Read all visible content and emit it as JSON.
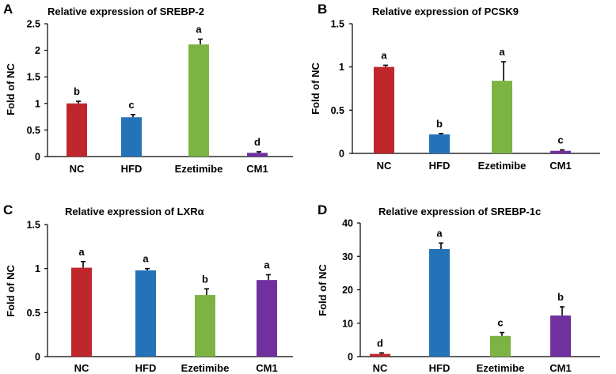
{
  "chart_data": [
    {
      "type": "bar",
      "panel": "A",
      "title": "Relative expression of SREBP-2",
      "ylabel": "Fold of NC",
      "xlabel": "",
      "categories": [
        "NC",
        "HFD",
        "Ezetimibe",
        "CM1"
      ],
      "values": [
        1.0,
        0.74,
        2.11,
        0.07
      ],
      "errors": [
        0.04,
        0.05,
        0.1,
        0.02
      ],
      "significance": [
        "b",
        "c",
        "a",
        "d"
      ],
      "ylim": [
        0,
        2.5
      ],
      "yticks": [
        "0",
        "0.5",
        "1",
        "1.5",
        "2",
        "2.5"
      ],
      "colors": [
        "#c0272d",
        "#2473b9",
        "#7cb342",
        "#7030a0"
      ]
    },
    {
      "type": "bar",
      "panel": "B",
      "title": "Relative expression of PCSK9",
      "ylabel": "Fold of NC",
      "xlabel": "",
      "categories": [
        "NC",
        "HFD",
        "Ezetimibe",
        "CM1"
      ],
      "values": [
        1.0,
        0.22,
        0.84,
        0.03
      ],
      "errors": [
        0.02,
        0.01,
        0.22,
        0.01
      ],
      "significance": [
        "a",
        "b",
        "a",
        "c"
      ],
      "ylim": [
        0,
        1.5
      ],
      "yticks": [
        "0",
        "0.5",
        "1",
        "1.5"
      ],
      "colors": [
        "#c0272d",
        "#2473b9",
        "#7cb342",
        "#7030a0"
      ]
    },
    {
      "type": "bar",
      "panel": "C",
      "title": "Relative expression of LXRα",
      "ylabel": "Fold of NC",
      "xlabel": "",
      "categories": [
        "NC",
        "HFD",
        "Ezetimibe",
        "CM1"
      ],
      "values": [
        1.01,
        0.98,
        0.7,
        0.87
      ],
      "errors": [
        0.07,
        0.02,
        0.07,
        0.06
      ],
      "significance": [
        "a",
        "a",
        "b",
        "a"
      ],
      "ylim": [
        0,
        1.5
      ],
      "yticks": [
        "0",
        "0.5",
        "1",
        "1.5"
      ],
      "colors": [
        "#c0272d",
        "#2473b9",
        "#7cb342",
        "#7030a0"
      ]
    },
    {
      "type": "bar",
      "panel": "D",
      "title": "Relative expression of SREBP-1c",
      "ylabel": "Fold of NC",
      "xlabel": "",
      "categories": [
        "NC",
        "HFD",
        "Ezetimibe",
        "CM1"
      ],
      "values": [
        0.8,
        32.2,
        6.2,
        12.3
      ],
      "errors": [
        0.3,
        1.8,
        1.0,
        2.6
      ],
      "significance": [
        "d",
        "a",
        "c",
        "b"
      ],
      "ylim": [
        0,
        40
      ],
      "yticks": [
        "0",
        "10",
        "20",
        "30",
        "40"
      ],
      "colors": [
        "#c0272d",
        "#2473b9",
        "#7cb342",
        "#7030a0"
      ]
    }
  ]
}
